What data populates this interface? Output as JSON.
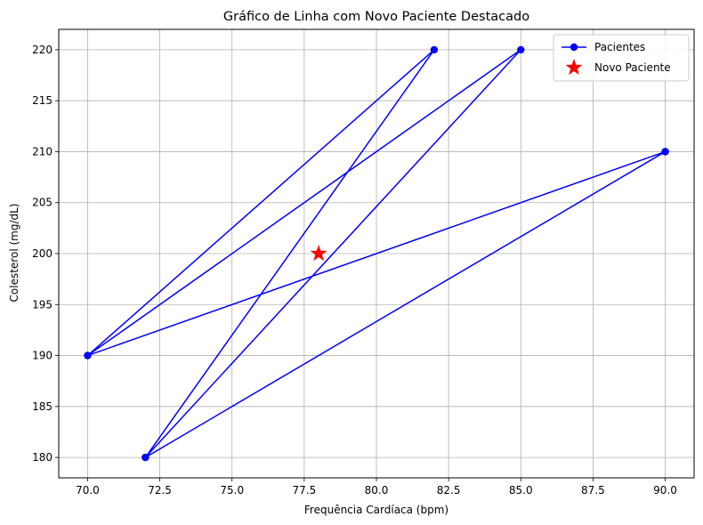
{
  "chart_data": {
    "type": "line",
    "title": "Gráfico de Linha com Novo Paciente Destacado",
    "xlabel": "Frequência Cardíaca (bpm)",
    "ylabel": "Colesterol (mg/dL)",
    "xlim": [
      69.0,
      91.0
    ],
    "ylim": [
      178.0,
      222.0
    ],
    "x_ticks": [
      "70.0",
      "72.5",
      "75.0",
      "77.5",
      "80.0",
      "82.5",
      "85.0",
      "87.5",
      "90.0"
    ],
    "y_ticks": [
      "180",
      "185",
      "190",
      "195",
      "200",
      "205",
      "210",
      "215",
      "220"
    ],
    "grid": true,
    "legend_position": "top-right",
    "series": [
      {
        "name": "Pacientes",
        "marker": "circle",
        "color": "#0000ff",
        "x": [
          70,
          82,
          72,
          85,
          70,
          90,
          72,
          90
        ],
        "y": [
          190,
          220,
          180,
          220,
          190,
          210,
          180,
          210
        ],
        "points_order_note": ""
      },
      {
        "name": "Novo Paciente",
        "marker": "star",
        "color": "#ff0000",
        "x": [
          78
        ],
        "y": [
          200
        ]
      }
    ]
  }
}
